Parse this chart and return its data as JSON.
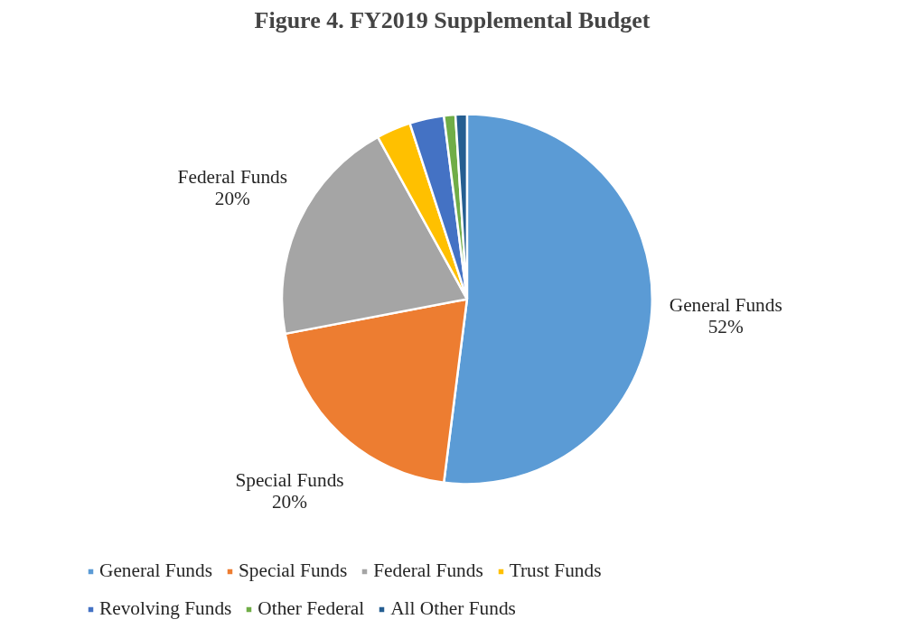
{
  "chart_data": {
    "type": "pie",
    "title": "Figure 4. FY2019 Supplemental Budget",
    "categories": [
      "General Funds",
      "Special Funds",
      "Federal Funds",
      "Trust Funds",
      "Revolving Funds",
      "Other Federal",
      "All Other Funds"
    ],
    "values": [
      52,
      20,
      20,
      3,
      3,
      1,
      1
    ],
    "colors": [
      "#5b9bd5",
      "#ed7d31",
      "#a5a5a5",
      "#ffc000",
      "#4472c4",
      "#70ad47",
      "#255e91"
    ],
    "value_labels": [
      "52%",
      "20%",
      "20%",
      null,
      null,
      null,
      null
    ],
    "legend": "bottom"
  }
}
